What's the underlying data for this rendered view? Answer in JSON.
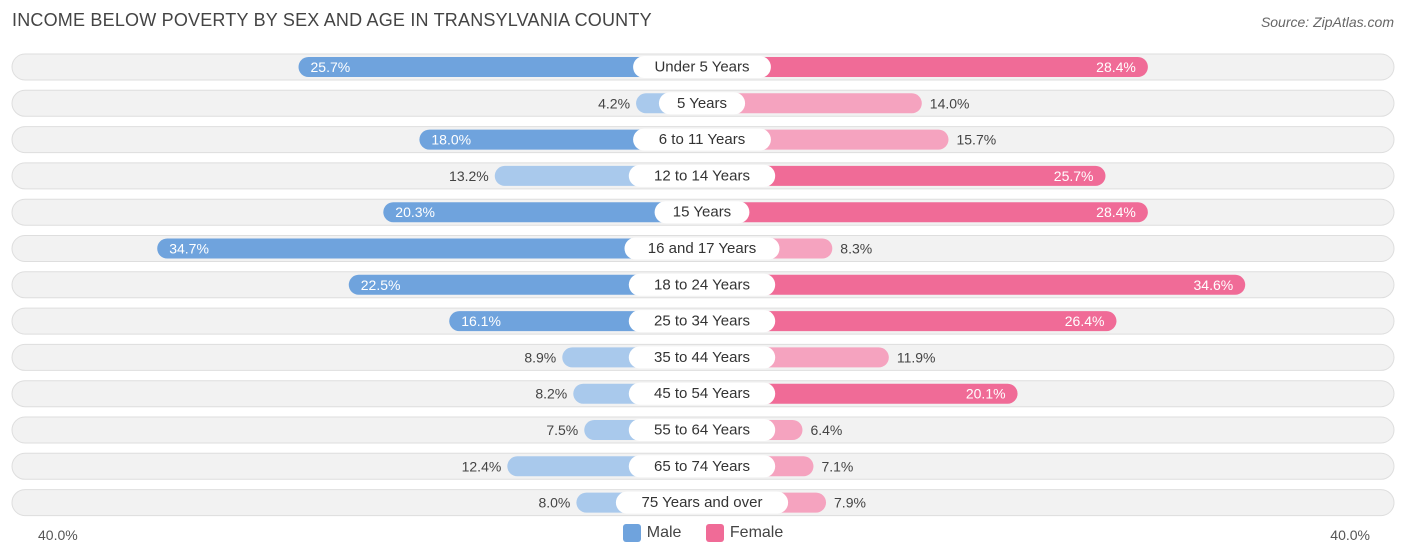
{
  "header": {
    "title": "INCOME BELOW POVERTY BY SEX AND AGE IN TRANSYLVANIA COUNTY",
    "source": "Source: ZipAtlas.com"
  },
  "colors": {
    "male_strong": "#6fa3dd",
    "male_light": "#a9c9ec",
    "female_strong": "#f06b97",
    "female_light": "#f5a3bf",
    "track": "#f2f2f2",
    "track_border": "#dedede"
  },
  "axis": {
    "left_label": "40.0%",
    "right_label": "40.0%"
  },
  "legend": {
    "male": "Male",
    "female": "Female"
  },
  "chart_data": {
    "type": "bar",
    "orientation": "diverging-horizontal",
    "title": "INCOME BELOW POVERTY BY SEX AND AGE IN TRANSYLVANIA COUNTY",
    "xlim": [
      -40,
      40
    ],
    "categories": [
      "Under 5 Years",
      "5 Years",
      "6 to 11 Years",
      "12 to 14 Years",
      "15 Years",
      "16 and 17 Years",
      "18 to 24 Years",
      "25 to 34 Years",
      "35 to 44 Years",
      "45 to 54 Years",
      "55 to 64 Years",
      "65 to 74 Years",
      "75 Years and over"
    ],
    "series": [
      {
        "name": "Male",
        "values": [
          25.7,
          4.2,
          18.0,
          13.2,
          20.3,
          34.7,
          22.5,
          16.1,
          8.9,
          8.2,
          7.5,
          12.4,
          8.0
        ],
        "labels": [
          "25.7%",
          "4.2%",
          "18.0%",
          "13.2%",
          "20.3%",
          "34.7%",
          "22.5%",
          "16.1%",
          "8.9%",
          "8.2%",
          "7.5%",
          "12.4%",
          "8.0%"
        ]
      },
      {
        "name": "Female",
        "values": [
          28.4,
          14.0,
          15.7,
          25.7,
          28.4,
          8.3,
          34.6,
          26.4,
          11.9,
          20.1,
          6.4,
          7.1,
          7.9
        ],
        "labels": [
          "28.4%",
          "14.0%",
          "15.7%",
          "25.7%",
          "28.4%",
          "8.3%",
          "34.6%",
          "26.4%",
          "11.9%",
          "20.1%",
          "6.4%",
          "7.1%",
          "7.9%"
        ]
      }
    ]
  }
}
